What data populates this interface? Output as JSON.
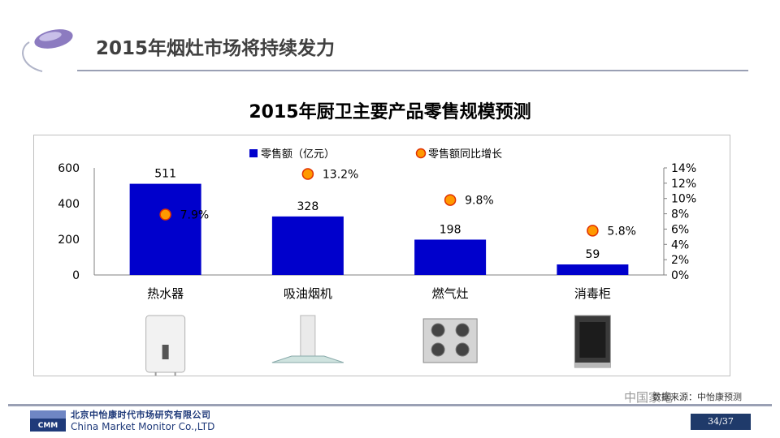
{
  "slide": {
    "title": "2015年烟灶市场将持续发力",
    "company_cn": "北京中怡康时代市场研究有限公司",
    "company_en": "China Market Monitor Co.,LTD",
    "logo_text": "CMM",
    "source": "数据来源：中怡康预测",
    "page": "34/37",
    "watermark": "中国家电",
    "colors": {
      "title": "#404040",
      "rule": "#9aa0b4",
      "brand": "#1f3a6a"
    }
  },
  "chart_data": {
    "type": "bar",
    "title": "2015年厨卫主要产品零售规模预测",
    "categories": [
      "热水器",
      "吸油烟机",
      "燃气灶",
      "消毒柜"
    ],
    "series": [
      {
        "name": "零售额（亿元）",
        "axis": "left",
        "kind": "bar",
        "values": [
          511,
          328,
          198,
          59
        ],
        "labels": [
          "511",
          "328",
          "198",
          "59"
        ],
        "color": "#0000cc"
      },
      {
        "name": "零售额同比增长",
        "axis": "right",
        "kind": "scatter",
        "values": [
          7.9,
          13.2,
          9.8,
          5.8
        ],
        "labels": [
          "7.9%",
          "13.2%",
          "9.8%",
          "5.8%"
        ],
        "color": "#ff9900"
      }
    ],
    "left_axis": {
      "ylim": [
        0,
        600
      ],
      "ticks": [
        "0",
        "200",
        "400",
        "600"
      ]
    },
    "right_axis": {
      "ylim": [
        0,
        14
      ],
      "ticks": [
        "0%",
        "2%",
        "4%",
        "6%",
        "8%",
        "10%",
        "12%",
        "14%"
      ]
    },
    "legend_position": "top",
    "grid": false,
    "product_images": [
      "water-heater",
      "range-hood",
      "gas-stove",
      "disinfection-cabinet"
    ]
  }
}
